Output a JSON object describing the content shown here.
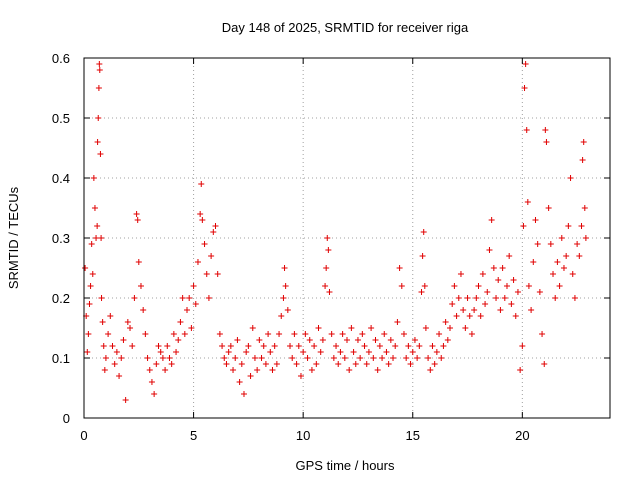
{
  "chart_data": {
    "type": "scatter",
    "title": "Day 148 of 2025, SRMTID for receiver riga",
    "xlabel": "GPS time / hours",
    "ylabel": "SRMTID / TECUs",
    "xlim": [
      0,
      24
    ],
    "ylim": [
      0,
      0.6
    ],
    "xticks": [
      0,
      5,
      10,
      15,
      20
    ],
    "xtick_labels": [
      "0",
      "5",
      "10",
      "15",
      "20"
    ],
    "yticks": [
      0,
      0.1,
      0.2,
      0.3,
      0.4,
      0.5,
      0.6
    ],
    "ytick_labels": [
      "0",
      "0.1",
      "0.2",
      "0.3",
      "0.4",
      "0.5",
      "0.6"
    ],
    "grid": true,
    "marker": "+",
    "color": "#e00000",
    "series": [
      {
        "name": "SRMTID",
        "points": [
          [
            0.05,
            0.25
          ],
          [
            0.1,
            0.17
          ],
          [
            0.15,
            0.11
          ],
          [
            0.2,
            0.14
          ],
          [
            0.25,
            0.19
          ],
          [
            0.3,
            0.22
          ],
          [
            0.35,
            0.29
          ],
          [
            0.4,
            0.24
          ],
          [
            0.45,
            0.4
          ],
          [
            0.5,
            0.35
          ],
          [
            0.55,
            0.3
          ],
          [
            0.6,
            0.32
          ],
          [
            0.62,
            0.46
          ],
          [
            0.65,
            0.5
          ],
          [
            0.68,
            0.55
          ],
          [
            0.7,
            0.59
          ],
          [
            0.72,
            0.58
          ],
          [
            0.75,
            0.44
          ],
          [
            0.78,
            0.3
          ],
          [
            0.8,
            0.2
          ],
          [
            0.85,
            0.16
          ],
          [
            0.9,
            0.12
          ],
          [
            0.95,
            0.08
          ],
          [
            1.0,
            0.1
          ],
          [
            1.1,
            0.14
          ],
          [
            1.2,
            0.17
          ],
          [
            1.3,
            0.12
          ],
          [
            1.4,
            0.09
          ],
          [
            1.5,
            0.11
          ],
          [
            1.6,
            0.07
          ],
          [
            1.7,
            0.1
          ],
          [
            1.8,
            0.13
          ],
          [
            1.9,
            0.03
          ],
          [
            2.0,
            0.16
          ],
          [
            2.1,
            0.15
          ],
          [
            2.2,
            0.12
          ],
          [
            2.3,
            0.2
          ],
          [
            2.4,
            0.34
          ],
          [
            2.45,
            0.33
          ],
          [
            2.5,
            0.26
          ],
          [
            2.6,
            0.22
          ],
          [
            2.7,
            0.18
          ],
          [
            2.8,
            0.14
          ],
          [
            2.9,
            0.1
          ],
          [
            3.0,
            0.08
          ],
          [
            3.1,
            0.06
          ],
          [
            3.2,
            0.04
          ],
          [
            3.3,
            0.09
          ],
          [
            3.4,
            0.12
          ],
          [
            3.5,
            0.11
          ],
          [
            3.6,
            0.1
          ],
          [
            3.7,
            0.08
          ],
          [
            3.8,
            0.12
          ],
          [
            3.9,
            0.1
          ],
          [
            4.0,
            0.09
          ],
          [
            4.1,
            0.14
          ],
          [
            4.2,
            0.11
          ],
          [
            4.3,
            0.13
          ],
          [
            4.4,
            0.16
          ],
          [
            4.5,
            0.2
          ],
          [
            4.6,
            0.14
          ],
          [
            4.7,
            0.18
          ],
          [
            4.8,
            0.2
          ],
          [
            4.9,
            0.15
          ],
          [
            5.0,
            0.22
          ],
          [
            5.1,
            0.19
          ],
          [
            5.2,
            0.26
          ],
          [
            5.3,
            0.34
          ],
          [
            5.35,
            0.39
          ],
          [
            5.4,
            0.33
          ],
          [
            5.5,
            0.29
          ],
          [
            5.6,
            0.24
          ],
          [
            5.7,
            0.2
          ],
          [
            5.8,
            0.27
          ],
          [
            5.9,
            0.31
          ],
          [
            6.0,
            0.32
          ],
          [
            6.1,
            0.24
          ],
          [
            6.2,
            0.14
          ],
          [
            6.3,
            0.12
          ],
          [
            6.4,
            0.1
          ],
          [
            6.5,
            0.09
          ],
          [
            6.6,
            0.11
          ],
          [
            6.7,
            0.12
          ],
          [
            6.8,
            0.08
          ],
          [
            6.9,
            0.1
          ],
          [
            7.0,
            0.13
          ],
          [
            7.1,
            0.06
          ],
          [
            7.2,
            0.09
          ],
          [
            7.3,
            0.04
          ],
          [
            7.4,
            0.11
          ],
          [
            7.5,
            0.12
          ],
          [
            7.6,
            0.07
          ],
          [
            7.7,
            0.15
          ],
          [
            7.8,
            0.1
          ],
          [
            7.9,
            0.08
          ],
          [
            8.0,
            0.13
          ],
          [
            8.1,
            0.1
          ],
          [
            8.2,
            0.12
          ],
          [
            8.3,
            0.09
          ],
          [
            8.4,
            0.14
          ],
          [
            8.5,
            0.11
          ],
          [
            8.6,
            0.08
          ],
          [
            8.7,
            0.12
          ],
          [
            8.8,
            0.09
          ],
          [
            8.9,
            0.14
          ],
          [
            9.0,
            0.17
          ],
          [
            9.1,
            0.2
          ],
          [
            9.15,
            0.25
          ],
          [
            9.2,
            0.22
          ],
          [
            9.3,
            0.18
          ],
          [
            9.4,
            0.12
          ],
          [
            9.5,
            0.1
          ],
          [
            9.6,
            0.14
          ],
          [
            9.7,
            0.09
          ],
          [
            9.8,
            0.12
          ],
          [
            9.9,
            0.07
          ],
          [
            10.0,
            0.11
          ],
          [
            10.1,
            0.14
          ],
          [
            10.2,
            0.1
          ],
          [
            10.3,
            0.13
          ],
          [
            10.4,
            0.08
          ],
          [
            10.5,
            0.12
          ],
          [
            10.6,
            0.09
          ],
          [
            10.7,
            0.15
          ],
          [
            10.8,
            0.11
          ],
          [
            10.9,
            0.13
          ],
          [
            11.0,
            0.22
          ],
          [
            11.05,
            0.25
          ],
          [
            11.1,
            0.3
          ],
          [
            11.15,
            0.28
          ],
          [
            11.2,
            0.21
          ],
          [
            11.3,
            0.14
          ],
          [
            11.4,
            0.1
          ],
          [
            11.5,
            0.12
          ],
          [
            11.6,
            0.09
          ],
          [
            11.7,
            0.11
          ],
          [
            11.8,
            0.14
          ],
          [
            11.9,
            0.1
          ],
          [
            12.0,
            0.13
          ],
          [
            12.1,
            0.08
          ],
          [
            12.2,
            0.15
          ],
          [
            12.3,
            0.11
          ],
          [
            12.4,
            0.09
          ],
          [
            12.5,
            0.13
          ],
          [
            12.6,
            0.1
          ],
          [
            12.7,
            0.14
          ],
          [
            12.8,
            0.12
          ],
          [
            12.9,
            0.09
          ],
          [
            13.0,
            0.11
          ],
          [
            13.1,
            0.15
          ],
          [
            13.2,
            0.1
          ],
          [
            13.3,
            0.13
          ],
          [
            13.4,
            0.08
          ],
          [
            13.5,
            0.12
          ],
          [
            13.6,
            0.1
          ],
          [
            13.7,
            0.14
          ],
          [
            13.8,
            0.11
          ],
          [
            13.9,
            0.09
          ],
          [
            14.0,
            0.13
          ],
          [
            14.1,
            0.1
          ],
          [
            14.2,
            0.12
          ],
          [
            14.3,
            0.16
          ],
          [
            14.4,
            0.25
          ],
          [
            14.5,
            0.22
          ],
          [
            14.6,
            0.14
          ],
          [
            14.7,
            0.1
          ],
          [
            14.8,
            0.12
          ],
          [
            14.9,
            0.09
          ],
          [
            15.0,
            0.11
          ],
          [
            15.1,
            0.13
          ],
          [
            15.2,
            0.1
          ],
          [
            15.3,
            0.12
          ],
          [
            15.4,
            0.21
          ],
          [
            15.45,
            0.27
          ],
          [
            15.5,
            0.31
          ],
          [
            15.55,
            0.22
          ],
          [
            15.6,
            0.15
          ],
          [
            15.7,
            0.1
          ],
          [
            15.8,
            0.08
          ],
          [
            15.9,
            0.12
          ],
          [
            16.0,
            0.09
          ],
          [
            16.1,
            0.11
          ],
          [
            16.2,
            0.14
          ],
          [
            16.3,
            0.1
          ],
          [
            16.4,
            0.12
          ],
          [
            16.5,
            0.16
          ],
          [
            16.6,
            0.13
          ],
          [
            16.7,
            0.15
          ],
          [
            16.8,
            0.19
          ],
          [
            16.9,
            0.22
          ],
          [
            17.0,
            0.17
          ],
          [
            17.1,
            0.2
          ],
          [
            17.2,
            0.24
          ],
          [
            17.3,
            0.18
          ],
          [
            17.4,
            0.15
          ],
          [
            17.5,
            0.2
          ],
          [
            17.6,
            0.17
          ],
          [
            17.7,
            0.14
          ],
          [
            17.8,
            0.18
          ],
          [
            17.9,
            0.2
          ],
          [
            18.0,
            0.22
          ],
          [
            18.1,
            0.17
          ],
          [
            18.2,
            0.24
          ],
          [
            18.3,
            0.19
          ],
          [
            18.4,
            0.21
          ],
          [
            18.5,
            0.28
          ],
          [
            18.6,
            0.33
          ],
          [
            18.7,
            0.25
          ],
          [
            18.8,
            0.2
          ],
          [
            18.9,
            0.23
          ],
          [
            19.0,
            0.18
          ],
          [
            19.1,
            0.25
          ],
          [
            19.2,
            0.2
          ],
          [
            19.3,
            0.22
          ],
          [
            19.4,
            0.27
          ],
          [
            19.5,
            0.19
          ],
          [
            19.6,
            0.23
          ],
          [
            19.7,
            0.17
          ],
          [
            19.8,
            0.21
          ],
          [
            19.9,
            0.08
          ],
          [
            20.0,
            0.12
          ],
          [
            20.05,
            0.32
          ],
          [
            20.1,
            0.55
          ],
          [
            20.15,
            0.59
          ],
          [
            20.2,
            0.48
          ],
          [
            20.25,
            0.36
          ],
          [
            20.3,
            0.22
          ],
          [
            20.4,
            0.18
          ],
          [
            20.5,
            0.26
          ],
          [
            20.6,
            0.33
          ],
          [
            20.7,
            0.29
          ],
          [
            20.8,
            0.21
          ],
          [
            20.9,
            0.14
          ],
          [
            21.0,
            0.09
          ],
          [
            21.05,
            0.48
          ],
          [
            21.1,
            0.46
          ],
          [
            21.2,
            0.35
          ],
          [
            21.3,
            0.29
          ],
          [
            21.4,
            0.24
          ],
          [
            21.5,
            0.2
          ],
          [
            21.6,
            0.26
          ],
          [
            21.7,
            0.22
          ],
          [
            21.8,
            0.3
          ],
          [
            21.9,
            0.25
          ],
          [
            22.0,
            0.27
          ],
          [
            22.1,
            0.32
          ],
          [
            22.2,
            0.4
          ],
          [
            22.3,
            0.24
          ],
          [
            22.4,
            0.2
          ],
          [
            22.5,
            0.29
          ],
          [
            22.6,
            0.27
          ],
          [
            22.7,
            0.32
          ],
          [
            22.75,
            0.43
          ],
          [
            22.8,
            0.46
          ],
          [
            22.85,
            0.35
          ],
          [
            22.9,
            0.3
          ]
        ]
      }
    ]
  }
}
